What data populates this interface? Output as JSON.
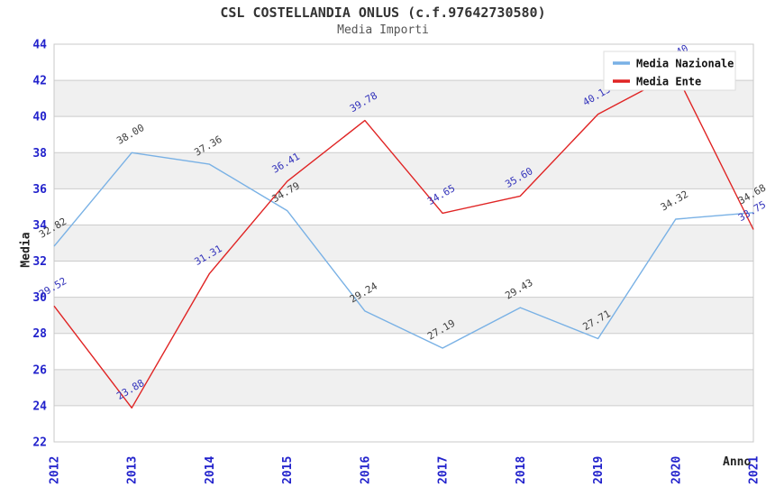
{
  "title": "CSL COSTELLANDIA ONLUS (c.f.97642730580)",
  "subtitle": "Media Importi",
  "y_axis_label": "Media",
  "x_axis_label": "Anno",
  "colors": {
    "tick_label": "#2222cc",
    "grid": "#cccccc",
    "stripe": "#f0f0f0",
    "plot_border": "#c8c8c8",
    "legend_border": "#dddddd",
    "legend_text": "#111111"
  },
  "chart_data": {
    "type": "line",
    "title": "CSL COSTELLANDIA ONLUS (c.f.97642730580)",
    "subtitle": "Media Importi",
    "xlabel": "Anno",
    "ylabel": "Media",
    "x": [
      "2012",
      "2013",
      "2014",
      "2015",
      "2016",
      "2017",
      "2018",
      "2019",
      "2020",
      "2021"
    ],
    "y_ticks": [
      44,
      42,
      40,
      38,
      36,
      34,
      32,
      30,
      28,
      26,
      24,
      22
    ],
    "ylim": [
      22,
      44
    ],
    "grid": "horizontal-stripes",
    "legend_position": "top-right",
    "series": [
      {
        "name": "Media Nazionale",
        "color": "#79b1e5",
        "label_color": "#404040",
        "values": [
          32.82,
          38.0,
          37.36,
          34.79,
          29.24,
          27.19,
          29.43,
          27.71,
          34.32,
          34.68
        ],
        "point_labels": [
          "32.82",
          "38.00",
          "37.36",
          "34.79",
          "29.24",
          "27.19",
          "29.43",
          "27.71",
          "34.32",
          "34.68"
        ]
      },
      {
        "name": "Media Ente",
        "color": "#e02424",
        "label_color": "#3333bb",
        "values": [
          29.52,
          23.88,
          31.31,
          36.41,
          39.78,
          34.65,
          35.6,
          40.13,
          42.4,
          33.75
        ],
        "point_labels": [
          "29.52",
          "23.88",
          "31.31",
          "36.41",
          "39.78",
          "34.65",
          "35.60",
          "40.13",
          "42.40",
          "33.75"
        ],
        "note": "2020 label hidden behind legend; value estimated from line slope"
      }
    ]
  }
}
